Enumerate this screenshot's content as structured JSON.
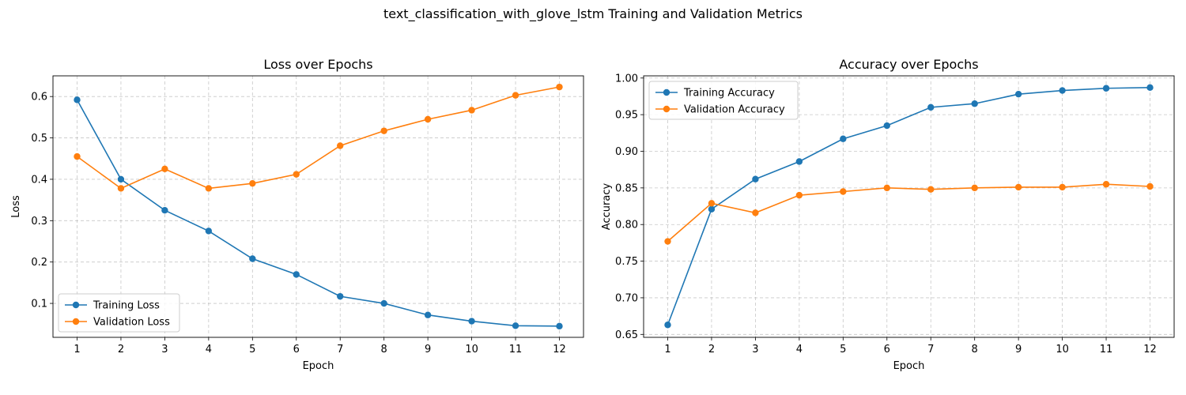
{
  "figure": {
    "suptitle": "text_classification_with_glove_lstm Training and Validation Metrics"
  },
  "chart_data": [
    {
      "type": "line",
      "title": "Loss over Epochs",
      "xlabel": "Epoch",
      "ylabel": "Loss",
      "x": [
        1,
        2,
        3,
        4,
        5,
        6,
        7,
        8,
        9,
        10,
        11,
        12
      ],
      "xticks": [
        "1",
        "2",
        "3",
        "4",
        "5",
        "6",
        "7",
        "8",
        "9",
        "10",
        "11",
        "12"
      ],
      "xlim": [
        0.45,
        12.55
      ],
      "ylim": [
        0.018,
        0.65
      ],
      "yticks": [
        "0.1",
        "0.2",
        "0.3",
        "0.4",
        "0.5",
        "0.6"
      ],
      "grid": true,
      "legend_position": "lower-left",
      "series": [
        {
          "name": "Training Loss",
          "color": "#1f77b4",
          "values": [
            0.592,
            0.4,
            0.325,
            0.275,
            0.208,
            0.17,
            0.117,
            0.1,
            0.072,
            0.057,
            0.046,
            0.045
          ]
        },
        {
          "name": "Validation Loss",
          "color": "#ff7f0e",
          "values": [
            0.455,
            0.378,
            0.425,
            0.378,
            0.39,
            0.412,
            0.481,
            0.517,
            0.545,
            0.567,
            0.603,
            0.623
          ]
        }
      ]
    },
    {
      "type": "line",
      "title": "Accuracy over Epochs",
      "xlabel": "Epoch",
      "ylabel": "Accuracy",
      "x": [
        1,
        2,
        3,
        4,
        5,
        6,
        7,
        8,
        9,
        10,
        11,
        12
      ],
      "xticks": [
        "1",
        "2",
        "3",
        "4",
        "5",
        "6",
        "7",
        "8",
        "9",
        "10",
        "11",
        "12"
      ],
      "xlim": [
        0.45,
        12.55
      ],
      "ylim": [
        0.646,
        1.003
      ],
      "yticks": [
        "0.65",
        "0.70",
        "0.75",
        "0.80",
        "0.85",
        "0.90",
        "0.95",
        "1.00"
      ],
      "grid": true,
      "legend_position": "upper-left",
      "series": [
        {
          "name": "Training Accuracy",
          "color": "#1f77b4",
          "values": [
            0.663,
            0.821,
            0.862,
            0.886,
            0.917,
            0.935,
            0.96,
            0.965,
            0.978,
            0.983,
            0.986,
            0.987
          ]
        },
        {
          "name": "Validation Accuracy",
          "color": "#ff7f0e",
          "values": [
            0.777,
            0.829,
            0.816,
            0.84,
            0.845,
            0.85,
            0.848,
            0.85,
            0.851,
            0.851,
            0.855,
            0.852
          ]
        }
      ]
    }
  ]
}
